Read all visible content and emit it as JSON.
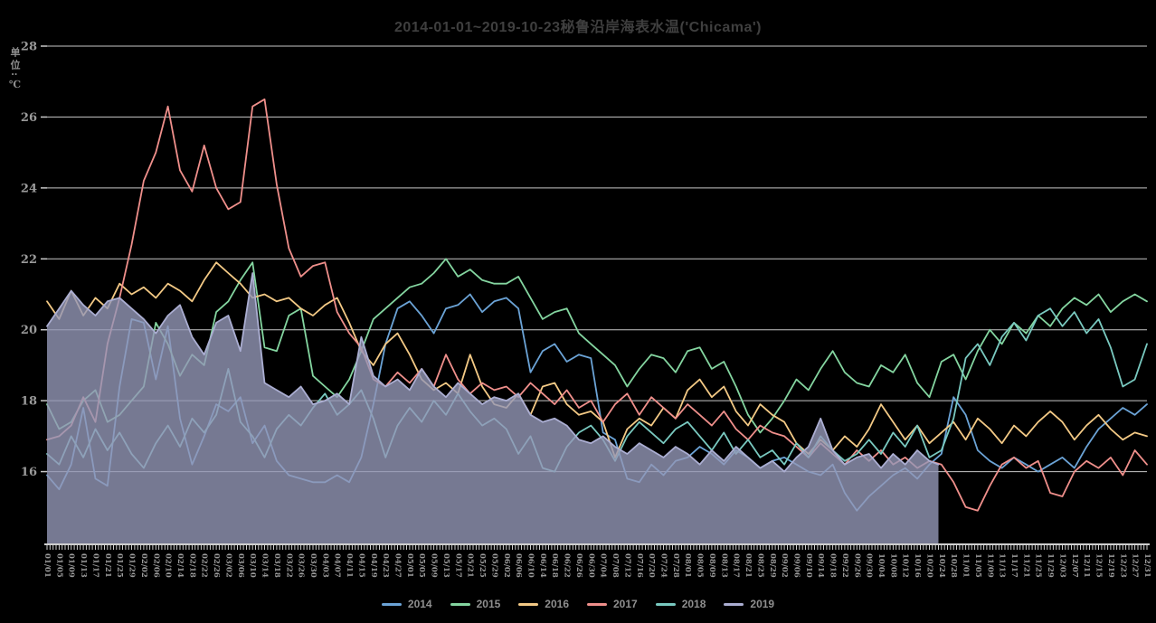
{
  "title": "2014-01-01~2019-10-23秘鲁沿岸海表水温('Chicama')",
  "colors": {
    "background": "#000000",
    "grid": "#c8c8c8",
    "axis": "#cfcfcf",
    "title_text": "#3f3f3f",
    "tick_text": "#9a9a9a",
    "legend_text": "#8f8f8f"
  },
  "y_axis": {
    "unit_label": "单位:℃",
    "ticks": [
      16,
      18,
      20,
      22,
      24,
      26,
      28
    ],
    "min": 14,
    "max": 28
  },
  "x_axis": {
    "label_step_days": 4,
    "labels": [
      "01/01",
      "01/05",
      "01/09",
      "01/13",
      "01/17",
      "01/21",
      "01/25",
      "01/29",
      "02/02",
      "02/06",
      "02/10",
      "02/14",
      "02/18",
      "02/22",
      "02/26",
      "03/02",
      "03/06",
      "03/10",
      "03/14",
      "03/18",
      "03/22",
      "03/26",
      "03/30",
      "04/03",
      "04/07",
      "04/11",
      "04/15",
      "04/19",
      "04/23",
      "04/27",
      "05/01",
      "05/05",
      "05/09",
      "05/13",
      "05/17",
      "05/21",
      "05/25",
      "05/29",
      "06/02",
      "06/06",
      "06/10",
      "06/14",
      "06/18",
      "06/22",
      "06/26",
      "06/30",
      "07/04",
      "07/08",
      "07/12",
      "07/16",
      "07/20",
      "07/24",
      "07/28",
      "08/01",
      "08/05",
      "08/09",
      "08/13",
      "08/17",
      "08/21",
      "08/25",
      "08/29",
      "09/02",
      "09/06",
      "09/10",
      "09/14",
      "09/18",
      "09/22",
      "09/26",
      "09/30",
      "10/04",
      "10/08",
      "10/12",
      "10/16",
      "10/20",
      "10/24",
      "10/28",
      "11/01",
      "11/05",
      "11/09",
      "11/13",
      "11/17",
      "11/21",
      "11/25",
      "11/29",
      "12/03",
      "12/07",
      "12/11",
      "12/15",
      "12/19",
      "12/23",
      "12/27",
      "12/31"
    ]
  },
  "chart_data": {
    "type": "line",
    "title": "2014-01-01~2019-10-23秘鲁沿岸海表水温('Chicama')",
    "xlabel": "",
    "ylabel": "单位:℃",
    "ylim": [
      14,
      28
    ],
    "grid": true,
    "legend_position": "bottom-center",
    "x_sampling": "day-of-year, one value every 4 days starting 01/01 (matches x_axis.labels)",
    "series": [
      {
        "name": "2014",
        "color": "#6ba3d6",
        "values": [
          15.9,
          15.5,
          16.2,
          17.8,
          15.8,
          15.6,
          18.4,
          20.3,
          20.2,
          18.6,
          20.1,
          17.5,
          16.2,
          17.0,
          17.9,
          17.7,
          18.1,
          16.8,
          17.3,
          16.3,
          15.9,
          15.8,
          15.7,
          15.7,
          15.9,
          15.7,
          16.4,
          17.9,
          19.6,
          20.6,
          20.8,
          20.4,
          19.9,
          20.6,
          20.7,
          21.0,
          20.5,
          20.8,
          20.9,
          20.6,
          18.8,
          19.4,
          19.6,
          19.1,
          19.3,
          19.2,
          17.1,
          16.9,
          15.8,
          15.7,
          16.2,
          15.9,
          16.3,
          16.4,
          16.7,
          16.5,
          16.2,
          16.6,
          16.4,
          16.1,
          16.3,
          16.4,
          16.2,
          16.0,
          15.9,
          16.2,
          15.4,
          14.9,
          15.3,
          15.6,
          15.9,
          16.1,
          15.8,
          16.2,
          16.5,
          18.1,
          17.6,
          16.6,
          16.3,
          16.1,
          16.4,
          16.2,
          16.0,
          16.2,
          16.4,
          16.1,
          16.7,
          17.2,
          17.5,
          17.8,
          17.6,
          17.9
        ]
      },
      {
        "name": "2015",
        "color": "#84d5a0",
        "values": [
          17.9,
          17.2,
          17.4,
          18.0,
          18.3,
          17.4,
          17.6,
          18.0,
          18.4,
          20.2,
          19.6,
          18.7,
          19.3,
          19.0,
          20.5,
          20.8,
          21.4,
          21.9,
          19.5,
          19.4,
          20.4,
          20.6,
          18.7,
          18.4,
          18.1,
          18.6,
          19.4,
          20.3,
          20.6,
          20.9,
          21.2,
          21.3,
          21.6,
          22.0,
          21.5,
          21.7,
          21.4,
          21.3,
          21.3,
          21.5,
          20.9,
          20.3,
          20.5,
          20.6,
          19.9,
          19.6,
          19.3,
          19.0,
          18.4,
          18.9,
          19.3,
          19.2,
          18.8,
          19.4,
          19.5,
          18.9,
          19.1,
          18.4,
          17.6,
          17.1,
          17.5,
          18.0,
          18.6,
          18.3,
          18.9,
          19.4,
          18.8,
          18.5,
          18.4,
          19.0,
          18.8,
          19.3,
          18.5,
          18.1,
          19.1,
          19.3,
          18.6,
          19.4,
          20.0,
          19.6,
          20.2,
          19.9,
          20.4,
          20.1,
          20.6,
          20.9,
          20.7,
          21.0,
          20.5,
          20.8,
          21.0,
          20.8
        ]
      },
      {
        "name": "2016",
        "color": "#f3c985",
        "values": [
          20.8,
          20.3,
          21.1,
          20.4,
          20.9,
          20.6,
          21.3,
          21.0,
          21.2,
          20.9,
          21.3,
          21.1,
          20.8,
          21.4,
          21.9,
          21.6,
          21.3,
          20.9,
          21.0,
          20.8,
          20.9,
          20.6,
          20.4,
          20.7,
          20.9,
          20.2,
          19.4,
          19.0,
          19.6,
          19.9,
          19.3,
          18.6,
          18.3,
          18.5,
          18.2,
          19.3,
          18.4,
          17.9,
          17.8,
          18.2,
          17.6,
          18.4,
          18.5,
          17.9,
          17.6,
          17.7,
          17.4,
          16.4,
          17.2,
          17.5,
          17.3,
          17.8,
          17.5,
          18.3,
          18.6,
          18.1,
          18.4,
          17.7,
          17.3,
          17.9,
          17.6,
          17.4,
          16.8,
          16.5,
          16.9,
          16.6,
          17.0,
          16.7,
          17.2,
          17.9,
          17.4,
          16.9,
          17.3,
          16.8,
          17.1,
          17.4,
          16.9,
          17.5,
          17.2,
          16.8,
          17.3,
          17.0,
          17.4,
          17.7,
          17.4,
          16.9,
          17.3,
          17.6,
          17.2,
          16.9,
          17.1,
          17.0
        ]
      },
      {
        "name": "2017",
        "color": "#ef8f8b",
        "values": [
          16.9,
          17.0,
          17.3,
          18.1,
          17.4,
          19.6,
          20.9,
          22.4,
          24.2,
          25.0,
          26.3,
          24.5,
          23.9,
          25.2,
          24.0,
          23.4,
          23.6,
          26.3,
          26.5,
          24.1,
          22.3,
          21.5,
          21.8,
          21.9,
          20.5,
          19.9,
          19.5,
          18.6,
          18.4,
          18.8,
          18.5,
          18.9,
          18.4,
          19.3,
          18.6,
          18.2,
          18.5,
          18.3,
          18.4,
          18.1,
          18.5,
          18.2,
          17.9,
          18.3,
          17.8,
          18.0,
          17.4,
          17.9,
          18.2,
          17.6,
          18.1,
          17.8,
          17.5,
          17.9,
          17.6,
          17.3,
          17.7,
          17.2,
          16.9,
          17.3,
          17.1,
          17.0,
          16.7,
          16.4,
          16.8,
          16.5,
          16.2,
          16.6,
          16.3,
          16.6,
          16.2,
          16.4,
          16.1,
          16.3,
          16.2,
          15.7,
          15.0,
          14.9,
          15.6,
          16.2,
          16.4,
          16.1,
          16.3,
          15.4,
          15.3,
          16.0,
          16.3,
          16.1,
          16.4,
          15.9,
          16.6,
          16.2
        ]
      },
      {
        "name": "2018",
        "color": "#79c9c0",
        "values": [
          16.5,
          16.2,
          17.0,
          16.4,
          17.2,
          16.6,
          17.1,
          16.5,
          16.1,
          16.8,
          17.3,
          16.7,
          17.5,
          17.1,
          17.6,
          18.9,
          17.4,
          17.0,
          16.4,
          17.2,
          17.6,
          17.3,
          17.8,
          18.2,
          17.6,
          17.9,
          18.3,
          17.5,
          16.4,
          17.3,
          17.8,
          17.4,
          18.0,
          17.6,
          18.2,
          17.7,
          17.3,
          17.5,
          17.2,
          16.5,
          17.0,
          16.1,
          16.0,
          16.7,
          17.1,
          17.3,
          16.9,
          16.3,
          17.0,
          17.4,
          17.1,
          16.8,
          17.2,
          17.4,
          17.0,
          16.6,
          17.1,
          16.5,
          16.9,
          16.4,
          16.6,
          16.2,
          16.8,
          16.4,
          17.0,
          16.6,
          16.3,
          16.5,
          16.9,
          16.5,
          17.1,
          16.7,
          17.3,
          16.4,
          16.6,
          17.5,
          19.2,
          19.6,
          19.0,
          19.8,
          20.2,
          19.7,
          20.4,
          20.6,
          20.1,
          20.5,
          19.9,
          20.3,
          19.5,
          18.4,
          18.6,
          19.6
        ]
      },
      {
        "name": "2019",
        "color": "#abaed2",
        "fill": true,
        "fill_color": "rgba(148,151,183,0.8)",
        "end_day": 296,
        "end_date": "10/23",
        "values": [
          20.1,
          20.6,
          21.1,
          20.7,
          20.4,
          20.8,
          20.9,
          20.6,
          20.3,
          19.9,
          20.4,
          20.7,
          19.8,
          19.3,
          20.2,
          20.4,
          19.4,
          21.6,
          18.5,
          18.3,
          18.1,
          18.4,
          17.9,
          18.0,
          18.2,
          17.9,
          19.8,
          18.7,
          18.4,
          18.6,
          18.3,
          18.9,
          18.4,
          18.1,
          18.5,
          18.2,
          17.9,
          18.1,
          18.0,
          18.2,
          17.6,
          17.4,
          17.5,
          17.3,
          16.9,
          16.8,
          17.0,
          16.7,
          16.5,
          16.8,
          16.6,
          16.4,
          16.7,
          16.5,
          16.2,
          16.6,
          16.3,
          16.7,
          16.4,
          16.1,
          16.3,
          16.0,
          16.4,
          16.7,
          17.5,
          16.6,
          16.2,
          16.4,
          16.5,
          16.1,
          16.5,
          16.2,
          16.6,
          16.3,
          16.2
        ]
      }
    ]
  },
  "legend": {
    "items": [
      "2014",
      "2015",
      "2016",
      "2017",
      "2018",
      "2019"
    ]
  }
}
